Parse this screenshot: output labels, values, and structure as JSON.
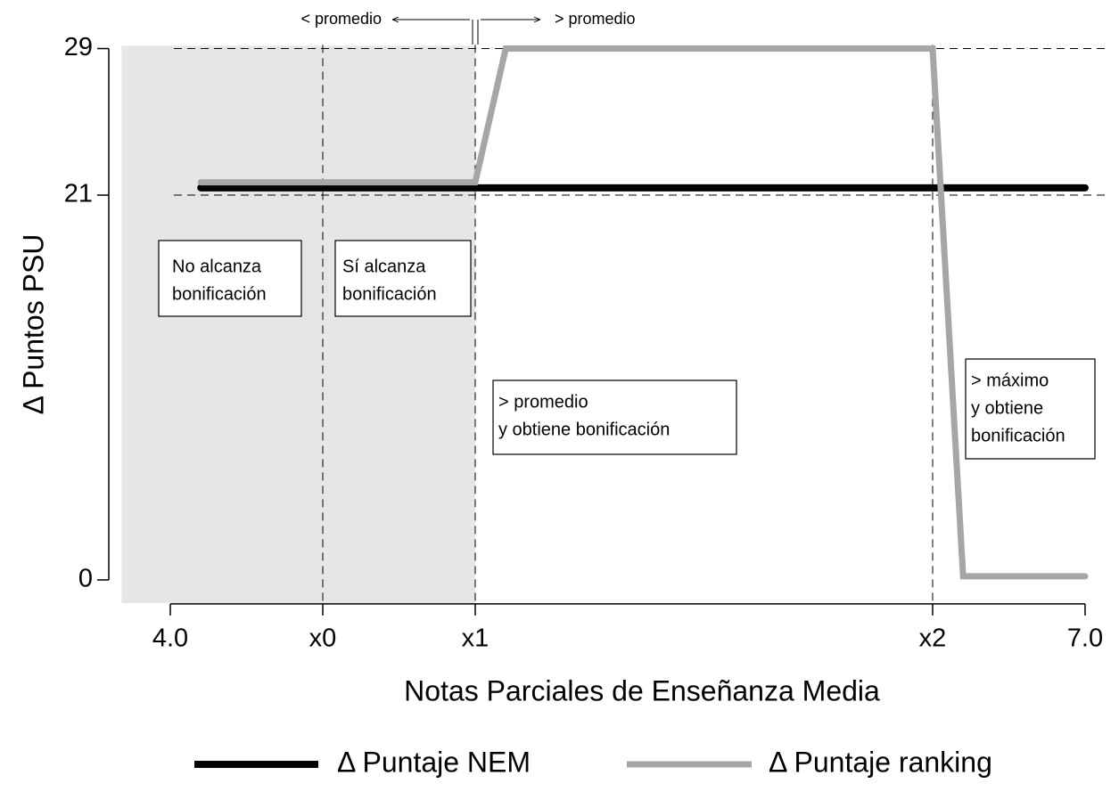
{
  "chart_data": {
    "type": "line",
    "x_label": "Notas Parciales de Enseñanza Media",
    "y_label": "Δ Puntos PSU",
    "xlim": [
      3.84,
      7.02
    ],
    "ylim": [
      -1.26,
      29.2
    ],
    "xticks": [
      {
        "value": 4,
        "label": "4.0"
      },
      {
        "value": 4.5,
        "label": "x0"
      },
      {
        "value": 5,
        "label": "x1"
      },
      {
        "value": 6.5,
        "label": "x2"
      },
      {
        "value": 7,
        "label": "7.0"
      }
    ],
    "yticks": [
      0,
      21,
      29
    ],
    "hlines": [
      29,
      21
    ],
    "vlines": [
      4.5,
      5,
      6.5
    ],
    "shade": {
      "x": [
        3.84,
        5
      ],
      "color": "#e6e6e6"
    },
    "series": [
      {
        "name": "Δ Puntaje NEM",
        "color": "#000000",
        "x": [
          4.1,
          7.0
        ],
        "values": [
          21.4,
          21.4
        ]
      },
      {
        "name": "Δ Puntaje ranking",
        "color": "#a6a6a6",
        "x": [
          4.1,
          5.0,
          5.1,
          6.5,
          6.6,
          7.0
        ],
        "values": [
          21.7,
          21.7,
          29,
          29,
          0.2,
          0.2
        ]
      }
    ],
    "annotations": [
      [
        "No alcanza",
        "bonificación"
      ],
      [
        "Sí alcanza",
        "bonificación"
      ],
      [
        "> promedio",
        "y obtiene bonificación"
      ],
      [
        "> máximo",
        "y obtiene",
        "bonificación"
      ]
    ],
    "top_labels": [
      "< promedio",
      "> promedio"
    ]
  }
}
